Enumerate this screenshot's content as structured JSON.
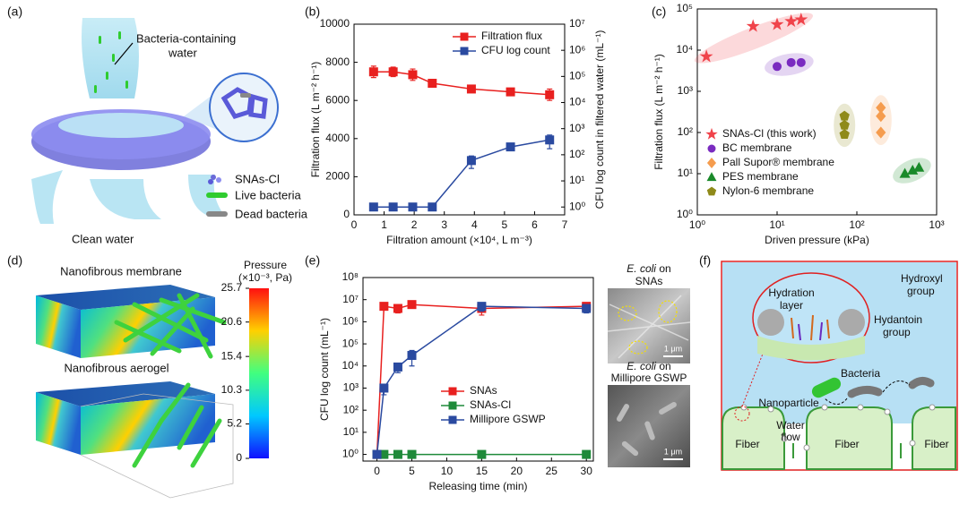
{
  "panel_labels": [
    "(a)",
    "(b)",
    "(c)",
    "(d)",
    "(e)",
    "(f)"
  ],
  "panel_a": {
    "water_label": [
      "Bacteria-containing",
      "water"
    ],
    "legend": [
      "SNAs-Cl",
      "Live bacteria",
      "Dead bacteria"
    ],
    "outlet_label": "Clean water"
  },
  "chart_data": [
    {
      "type": "line",
      "x": [
        0.65,
        1.3,
        1.95,
        2.6,
        3.9,
        5.2,
        6.5
      ],
      "xlim": [
        0,
        7
      ],
      "xticks": [
        0,
        1,
        2,
        3,
        4,
        5,
        6,
        7
      ],
      "ylim": [
        0,
        10000
      ],
      "yticks": [
        0,
        2000,
        4000,
        6000,
        8000,
        10000
      ],
      "y2lim": [
        0.5,
        10000000
      ],
      "y2log": true,
      "y2ticks": [
        {
          "value": 1,
          "label": "10⁰"
        },
        {
          "value": 10,
          "label": "10¹"
        },
        {
          "value": 100,
          "label": "10²"
        },
        {
          "value": 1000,
          "label": "10³"
        },
        {
          "value": 10000,
          "label": "10⁴"
        },
        {
          "value": 100000,
          "label": "10⁵"
        },
        {
          "value": 1000000,
          "label": "10⁶"
        },
        {
          "value": 10000000,
          "label": "10⁷"
        }
      ],
      "xlabel": "Filtration amount (×10⁴, L m⁻³)",
      "ylabel": "Filtration flux (L m⁻² h⁻¹)",
      "y2label": "CFU log count in filtered water (mL⁻¹)",
      "legend": "upper right",
      "series": [
        {
          "name": "Filtration flux",
          "color": "#e8201f",
          "marker": "square",
          "values": [
            7500,
            7500,
            7350,
            6900,
            6600,
            6450,
            6300
          ],
          "errors": [
            300,
            250,
            300,
            200,
            120,
            120,
            300
          ]
        },
        {
          "name": "CFU log count",
          "color": "#2a4aa0",
          "marker": "square",
          "axis": "y2",
          "values": [
            1,
            1,
            1,
            1,
            60,
            200,
            370
          ],
          "errors": [
            null,
            null,
            null,
            null,
            30,
            40,
            200
          ]
        }
      ]
    },
    {
      "type": "scatter",
      "xlog": true,
      "ylog": true,
      "xlim": [
        1,
        1000
      ],
      "ylim": [
        1,
        100000
      ],
      "xticks": [
        {
          "value": 1,
          "label": "10⁰"
        },
        {
          "value": 10,
          "label": "10¹"
        },
        {
          "value": 100,
          "label": "10²"
        },
        {
          "value": 1000,
          "label": "10³"
        }
      ],
      "yticks": [
        {
          "value": 1,
          "label": "10⁰"
        },
        {
          "value": 10,
          "label": "10¹"
        },
        {
          "value": 100,
          "label": "10²"
        },
        {
          "value": 1000,
          "label": "10³"
        },
        {
          "value": 10000,
          "label": "10⁴"
        },
        {
          "value": 100000,
          "label": "10⁵"
        }
      ],
      "xlabel": "Driven pressure (kPa)",
      "ylabel": "Filtration flux (L m⁻² h⁻¹)",
      "legend": "lower left",
      "series": [
        {
          "name": "SNAs-Cl (this work)",
          "color": "#f0434a",
          "marker": "star",
          "x": [
            1.3,
            5,
            10,
            15,
            20
          ],
          "values": [
            7000,
            38000,
            42000,
            50000,
            55000
          ]
        },
        {
          "name": "BC membrane",
          "color": "#7a2bc0",
          "marker": "circle",
          "x": [
            10,
            15,
            20
          ],
          "values": [
            4000,
            5000,
            5000
          ]
        },
        {
          "name": "Pall Supor® membrane",
          "color": "#f59c4e",
          "marker": "diamond",
          "x": [
            200,
            200,
            200
          ],
          "values": [
            400,
            250,
            100
          ]
        },
        {
          "name": "PES membrane",
          "color": "#1a8a2a",
          "marker": "triangle",
          "x": [
            400,
            500,
            600
          ],
          "values": [
            10,
            12,
            14
          ]
        },
        {
          "name": "Nylon-6 membrane",
          "color": "#8f8a1a",
          "marker": "pentagon",
          "x": [
            70,
            70,
            70
          ],
          "values": [
            250,
            150,
            90
          ]
        }
      ]
    },
    {
      "type": "line",
      "ylog": true,
      "x": [
        0,
        1,
        3,
        5,
        15,
        30
      ],
      "xlim": [
        -2,
        31
      ],
      "xticks": [
        0,
        5,
        10,
        15,
        20,
        25,
        30
      ],
      "ylim": [
        0.5,
        100000000
      ],
      "yticks": [
        {
          "value": 1,
          "label": "10⁰"
        },
        {
          "value": 10,
          "label": "10¹"
        },
        {
          "value": 100,
          "label": "10²"
        },
        {
          "value": 1000,
          "label": "10³"
        },
        {
          "value": 10000,
          "label": "10⁴"
        },
        {
          "value": 100000,
          "label": "10⁵"
        },
        {
          "value": 1000000,
          "label": "10⁶"
        },
        {
          "value": 10000000,
          "label": "10⁷"
        },
        {
          "value": 100000000,
          "label": "10⁸"
        }
      ],
      "xlabel": "Releasing time (min)",
      "ylabel": "CFU log count (mL⁻¹)",
      "legend": "lower right",
      "series": [
        {
          "name": "SNAs",
          "color": "#e8201f",
          "marker": "square",
          "values": [
            1,
            5000000,
            4000000,
            6000000,
            4000000,
            5000000
          ],
          "errors": [
            null,
            null,
            1500000,
            1000000,
            2000000,
            1500000
          ]
        },
        {
          "name": "SNAs-Cl",
          "color": "#1f8a3a",
          "marker": "square",
          "values": [
            1,
            1,
            1,
            1,
            1,
            1
          ]
        },
        {
          "name": "Millipore GSWP",
          "color": "#2a4aa0",
          "marker": "square",
          "values": [
            1,
            1000,
            9000,
            30000,
            5000000,
            4000000
          ],
          "errors": [
            null,
            500,
            4000,
            20000,
            2000000,
            1500000
          ]
        }
      ]
    }
  ],
  "panel_d": {
    "top_title": "Nanofibrous membrane",
    "bottom_title": "Nanofibrous aerogel",
    "colorbar_title": "Pressure",
    "colorbar_unit": "(×10⁻³, Pa)",
    "colorbar_ticks": [
      25.7,
      20.6,
      15.4,
      10.3,
      5.2,
      0
    ]
  },
  "panel_e_images": [
    {
      "organism": "E. coli",
      "connector": "on",
      "substrate": "SNAs",
      "scale": "1 μm"
    },
    {
      "organism": "E. coli",
      "connector": "on",
      "substrate": "Millipore GSWP",
      "scale": "1 μm"
    }
  ],
  "panel_f": {
    "hydration": [
      "Hydration",
      "layer"
    ],
    "hydroxyl": [
      "Hydroxyl",
      "group"
    ],
    "hydantoin": [
      "Hydantoin",
      "group"
    ],
    "bacteria": "Bacteria",
    "nanoparticle": "Nanoparticle",
    "water_flow": [
      "Water",
      "flow"
    ],
    "fibers": [
      "Fiber",
      "Fiber",
      "Fiber"
    ]
  }
}
